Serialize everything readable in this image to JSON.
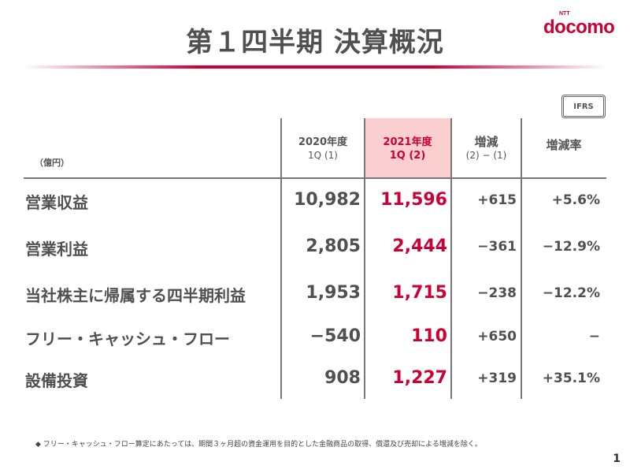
{
  "title": "第１四半期 決算概況",
  "logo": {
    "small": "NTT",
    "main": "docomo"
  },
  "badge": "IFRS",
  "unit": "（億円）",
  "headers": [
    {
      "l1": "2020年度",
      "l2": "1Q (1)"
    },
    {
      "l1": "2021年度",
      "l2": "1Q (2)"
    },
    {
      "l1": "増減",
      "l2": "(2) − (1)"
    },
    {
      "l1": "増減率",
      "l2": ""
    }
  ],
  "rows": [
    {
      "label": "営業収益",
      "v2020": "10,982",
      "v2021": "11,596",
      "diff": "+615",
      "rate": "+5.6%"
    },
    {
      "label": "営業利益",
      "v2020": "2,805",
      "v2021": "2,444",
      "diff": "−361",
      "rate": "−12.9%"
    },
    {
      "label": "当社株主に帰属する四半期利益",
      "v2020": "1,953",
      "v2021": "1,715",
      "diff": "−238",
      "rate": "−12.2%"
    },
    {
      "label": "フリー・キャッシュ・フロー",
      "v2020": "−540",
      "v2021": "110",
      "diff": "+650",
      "rate": "−"
    },
    {
      "label": "設備投資",
      "v2020": "908",
      "v2021": "1,227",
      "diff": "+319",
      "rate": "+35.1%"
    }
  ],
  "note": "◆ フリー・キャッシュ・フロー算定にあたっては、期間３ヶ月超の資金運用を目的とした金融商品の取得、償還及び売却による増減を除く。",
  "page": "1",
  "colors": {
    "accent": "#cc0033",
    "highlight": "#fbcfd0"
  }
}
